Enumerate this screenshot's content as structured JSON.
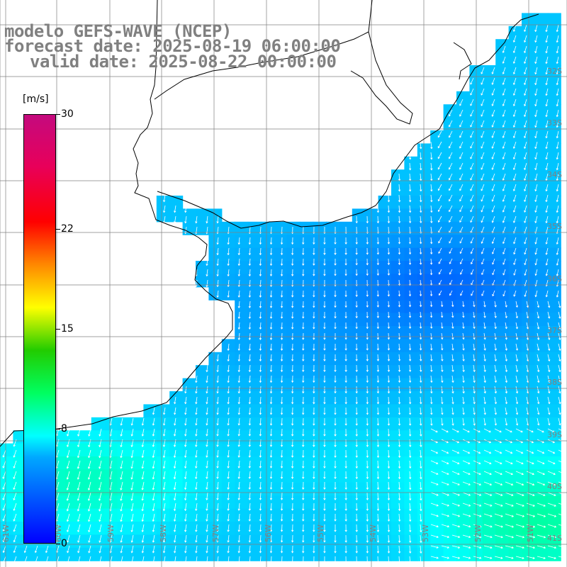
{
  "title": {
    "line1": "modelo GEFS-WAVE (NCEP)",
    "line2": "forecast date: 2025-08-19 06:00:00",
    "line3": "valid date: 2025-08-22 00:00:00"
  },
  "colorbar": {
    "unit": "[m/s]",
    "ticks": [
      "30",
      "22",
      "15",
      "8",
      "0"
    ],
    "tick_values": [
      30,
      22,
      15,
      8,
      0
    ],
    "min": 0,
    "max": 30
  },
  "map": {
    "lon_labels": [
      "61W",
      "60W",
      "59W",
      "58W",
      "57W",
      "56W",
      "55W",
      "54W",
      "53W",
      "52W",
      "51W"
    ],
    "lat_labels": [
      "32S",
      "33S",
      "34S",
      "35S",
      "36S",
      "37S",
      "38S",
      "39S",
      "40S",
      "41S"
    ],
    "colors": {
      "land": "#ffffff",
      "coast": "#000000",
      "grid": "#808080",
      "arrow": "#ffffff"
    }
  }
}
